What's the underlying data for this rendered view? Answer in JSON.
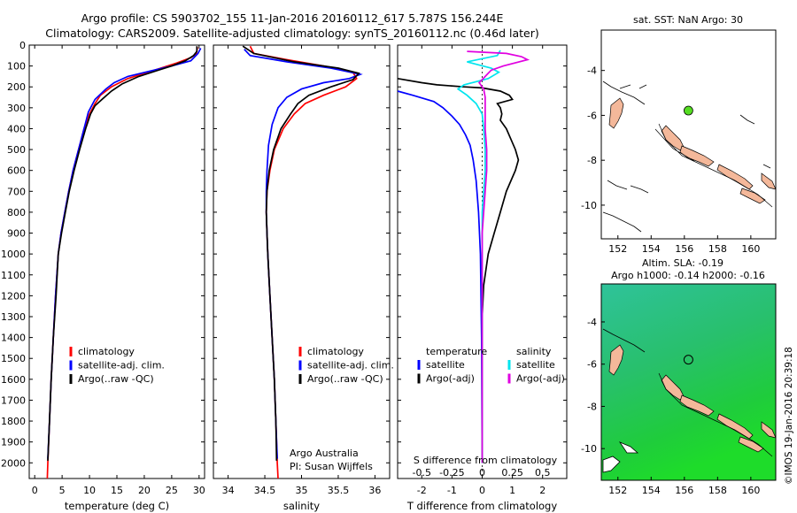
{
  "header": {
    "title_line1": "Argo profile: CS 5903702_155 11-Jan-2016 20160112_617 5.787S 156.244E",
    "title_line2": "Climatology: CARS2009. Satellite-adjusted climatology: synTS_20160112.nc (0.46d later)"
  },
  "colors": {
    "climatology": "#ff0000",
    "satellite": "#0000ff",
    "argo": "#000000",
    "sal_satellite": "#00e5ee",
    "sal_argo": "#e000e0",
    "land": "#f4b89a",
    "float_marker": "#55dd22"
  },
  "chart_data": [
    {
      "type": "line",
      "id": "temperature-profile",
      "xlabel": "temperature (deg C)",
      "ylabel": "",
      "xlim": [
        -1,
        31
      ],
      "ylim": [
        2075,
        0
      ],
      "x_ticks": [
        0,
        5,
        10,
        15,
        20,
        25,
        30
      ],
      "y_ticks": [
        0,
        100,
        200,
        300,
        400,
        500,
        600,
        700,
        800,
        900,
        1000,
        1100,
        1200,
        1300,
        1400,
        1500,
        1600,
        1700,
        1800,
        1900,
        2000
      ],
      "legend": [
        "climatology",
        "satellite-adj. clim.",
        "Argo(..raw -QC)"
      ],
      "series": [
        {
          "name": "climatology",
          "color": "#ff0000",
          "points": [
            [
              29.7,
              10
            ],
            [
              29.5,
              40
            ],
            [
              28.5,
              60
            ],
            [
              26,
              85
            ],
            [
              23,
              110
            ],
            [
              20,
              135
            ],
            [
              17,
              160
            ],
            [
              14,
              200
            ],
            [
              12,
              240
            ],
            [
              11,
              280
            ],
            [
              10,
              330
            ],
            [
              9,
              400
            ],
            [
              8,
              500
            ],
            [
              7,
              600
            ],
            [
              6.2,
              700
            ],
            [
              5.5,
              800
            ],
            [
              4.8,
              900
            ],
            [
              4.3,
              1000
            ],
            [
              3.8,
              1200
            ],
            [
              3.4,
              1400
            ],
            [
              3,
              1600
            ],
            [
              2.7,
              1800
            ],
            [
              2.4,
              2000
            ],
            [
              2.3,
              2075
            ]
          ]
        },
        {
          "name": "satellite-adj. clim.",
          "color": "#0000ff",
          "points": [
            [
              30.3,
              15
            ],
            [
              29.8,
              40
            ],
            [
              28.5,
              75
            ],
            [
              25,
              100
            ],
            [
              21,
              125
            ],
            [
              17,
              150
            ],
            [
              14.5,
              180
            ],
            [
              13,
              210
            ],
            [
              11,
              260
            ],
            [
              9.8,
              320
            ],
            [
              9,
              400
            ],
            [
              8,
              500
            ],
            [
              7,
              600
            ],
            [
              6.2,
              700
            ],
            [
              5.5,
              800
            ],
            [
              4.8,
              900
            ],
            [
              4.3,
              1000
            ],
            [
              3.8,
              1200
            ],
            [
              3.4,
              1400
            ],
            [
              3,
              1600
            ],
            [
              2.7,
              1800
            ],
            [
              2.4,
              1980
            ]
          ]
        },
        {
          "name": "Argo(..raw -QC)",
          "color": "#000000",
          "points": [
            [
              29.6,
              5
            ],
            [
              29.6,
              30
            ],
            [
              29,
              50
            ],
            [
              27.5,
              75
            ],
            [
              25,
              100
            ],
            [
              22,
              125
            ],
            [
              19,
              150
            ],
            [
              16,
              185
            ],
            [
              14,
              220
            ],
            [
              12.5,
              255
            ],
            [
              11,
              290
            ],
            [
              10.2,
              330
            ],
            [
              9.3,
              400
            ],
            [
              8.2,
              500
            ],
            [
              7.2,
              600
            ],
            [
              6.3,
              700
            ],
            [
              5.6,
              800
            ],
            [
              4.9,
              900
            ],
            [
              4.3,
              1000
            ],
            [
              3.9,
              1200
            ],
            [
              3.4,
              1400
            ],
            [
              3,
              1600
            ],
            [
              2.7,
              1800
            ],
            [
              2.4,
              1990
            ]
          ]
        }
      ]
    },
    {
      "type": "line",
      "id": "salinity-profile",
      "xlabel": "salinity",
      "ylabel": "",
      "xlim": [
        33.8,
        36.2
      ],
      "ylim": [
        2075,
        0
      ],
      "x_ticks": [
        34,
        34.5,
        35,
        35.5,
        36
      ],
      "legend": [
        "climatology",
        "satellite-adj. clim.",
        "Argo(..raw -QC)"
      ],
      "annotation": [
        "Argo Australia",
        "PI: Susan Wijffels"
      ],
      "series": [
        {
          "name": "climatology",
          "color": "#ff0000",
          "points": [
            [
              34.3,
              5
            ],
            [
              34.35,
              40
            ],
            [
              34.8,
              70
            ],
            [
              35.3,
              100
            ],
            [
              35.7,
              130
            ],
            [
              35.75,
              160
            ],
            [
              35.6,
              200
            ],
            [
              35.3,
              240
            ],
            [
              35.05,
              280
            ],
            [
              34.9,
              330
            ],
            [
              34.75,
              400
            ],
            [
              34.63,
              500
            ],
            [
              34.57,
              600
            ],
            [
              34.53,
              700
            ],
            [
              34.52,
              800
            ],
            [
              34.53,
              900
            ],
            [
              34.54,
              1000
            ],
            [
              34.57,
              1200
            ],
            [
              34.6,
              1400
            ],
            [
              34.63,
              1600
            ],
            [
              34.65,
              1800
            ],
            [
              34.67,
              2000
            ],
            [
              34.68,
              2075
            ]
          ]
        },
        {
          "name": "satellite-adj. clim.",
          "color": "#0000ff",
          "points": [
            [
              34.22,
              20
            ],
            [
              34.3,
              50
            ],
            [
              34.8,
              80
            ],
            [
              35.4,
              110
            ],
            [
              35.8,
              140
            ],
            [
              35.65,
              160
            ],
            [
              35.3,
              180
            ],
            [
              35,
              210
            ],
            [
              34.8,
              250
            ],
            [
              34.68,
              300
            ],
            [
              34.6,
              380
            ],
            [
              34.55,
              480
            ],
            [
              34.53,
              600
            ],
            [
              34.52,
              700
            ],
            [
              34.52,
              800
            ],
            [
              34.53,
              900
            ],
            [
              34.54,
              1000
            ],
            [
              34.57,
              1200
            ],
            [
              34.6,
              1400
            ],
            [
              34.63,
              1600
            ],
            [
              34.65,
              1800
            ],
            [
              34.67,
              1980
            ]
          ]
        },
        {
          "name": "Argo(..raw -QC)",
          "color": "#000000",
          "points": [
            [
              34.2,
              5
            ],
            [
              34.35,
              40
            ],
            [
              34.9,
              80
            ],
            [
              35.5,
              110
            ],
            [
              35.78,
              135
            ],
            [
              35.7,
              165
            ],
            [
              35.4,
              200
            ],
            [
              35.1,
              240
            ],
            [
              34.95,
              280
            ],
            [
              34.85,
              330
            ],
            [
              34.72,
              400
            ],
            [
              34.62,
              500
            ],
            [
              34.56,
              600
            ],
            [
              34.53,
              700
            ],
            [
              34.52,
              800
            ],
            [
              34.53,
              900
            ],
            [
              34.54,
              1000
            ],
            [
              34.57,
              1200
            ],
            [
              34.6,
              1400
            ],
            [
              34.63,
              1600
            ],
            [
              34.65,
              1800
            ],
            [
              34.66,
              1990
            ]
          ]
        }
      ]
    },
    {
      "type": "line",
      "id": "difference-profile",
      "xlabel": "T difference from climatology",
      "xlabel_top": "S difference from climatology",
      "xlim": [
        -2.8,
        2.8
      ],
      "ylim": [
        2075,
        0
      ],
      "x_ticks_bottom": [
        -2,
        -1,
        0,
        1,
        2
      ],
      "x_ticks_top_labels": [
        "-0.5",
        "-0.25",
        "0",
        "0.25",
        "0.5"
      ],
      "legend_left_header": "temperature",
      "legend_right_header": "salinity",
      "legend_left": [
        "satellite",
        "Argo(-adj)"
      ],
      "legend_right": [
        "satellite",
        "Argo(-adj)"
      ],
      "series": [
        {
          "name": "temperature satellite",
          "color": "#0000ff",
          "points": [
            [
              -2.8,
              220
            ],
            [
              -2.3,
              240
            ],
            [
              -1.6,
              270
            ],
            [
              -1.3,
              300
            ],
            [
              -1,
              340
            ],
            [
              -0.75,
              380
            ],
            [
              -0.55,
              430
            ],
            [
              -0.4,
              480
            ],
            [
              -0.3,
              550
            ],
            [
              -0.2,
              650
            ],
            [
              -0.12,
              800
            ],
            [
              -0.06,
              1000
            ],
            [
              -0.02,
              1400
            ],
            [
              0,
              2000
            ]
          ]
        },
        {
          "name": "temperature Argo(-adj)",
          "color": "#000000",
          "points": [
            [
              -2.8,
              160
            ],
            [
              -2,
              180
            ],
            [
              -1.5,
              190
            ],
            [
              -0.6,
              200
            ],
            [
              0,
              205
            ],
            [
              0.6,
              220
            ],
            [
              0.9,
              240
            ],
            [
              1,
              260
            ],
            [
              0.5,
              280
            ],
            [
              0.6,
              300
            ],
            [
              0.65,
              330
            ],
            [
              0.6,
              360
            ],
            [
              0.8,
              400
            ],
            [
              0.95,
              450
            ],
            [
              1.1,
              500
            ],
            [
              1.2,
              550
            ],
            [
              1.1,
              600
            ],
            [
              0.95,
              650
            ],
            [
              0.8,
              700
            ],
            [
              0.6,
              800
            ],
            [
              0.4,
              900
            ],
            [
              0.2,
              1000
            ],
            [
              0.05,
              1150
            ],
            [
              0,
              1300
            ],
            [
              0,
              2000
            ]
          ]
        },
        {
          "name": "salinity satellite",
          "color": "#00e5ee",
          "points": [
            [
              0.6,
              25
            ],
            [
              0.5,
              50
            ],
            [
              -0.5,
              80
            ],
            [
              0.3,
              110
            ],
            [
              0.55,
              130
            ],
            [
              0.2,
              160
            ],
            [
              -0.6,
              190
            ],
            [
              -0.8,
              210
            ],
            [
              -0.5,
              240
            ],
            [
              -0.2,
              280
            ],
            [
              0,
              330
            ],
            [
              0.05,
              400
            ],
            [
              0.1,
              500
            ],
            [
              0.1,
              600
            ],
            [
              0.05,
              700
            ],
            [
              0,
              800
            ],
            [
              0,
              2000
            ]
          ]
        },
        {
          "name": "salinity Argo(-adj)",
          "color": "#e000e0",
          "points": [
            [
              -0.5,
              30
            ],
            [
              0.8,
              40
            ],
            [
              1.3,
              55
            ],
            [
              1.5,
              70
            ],
            [
              0.7,
              100
            ],
            [
              0.3,
              120
            ],
            [
              0.1,
              150
            ],
            [
              -0.1,
              180
            ],
            [
              0.05,
              210
            ],
            [
              0.1,
              250
            ],
            [
              0.1,
              300
            ],
            [
              0.1,
              400
            ],
            [
              0.15,
              500
            ],
            [
              0.15,
              600
            ],
            [
              0.1,
              700
            ],
            [
              0.05,
              800
            ],
            [
              0,
              900
            ],
            [
              0,
              2000
            ]
          ]
        }
      ]
    },
    {
      "type": "scatter",
      "id": "sst-map",
      "title": "sat. SST: NaN Argo: 30",
      "xlim": [
        151,
        161.5
      ],
      "ylim": [
        -11.5,
        -2.2
      ],
      "x_ticks": [
        152,
        154,
        156,
        158,
        160
      ],
      "y_ticks": [
        -4,
        -6,
        -8,
        -10
      ],
      "points": [
        {
          "lon": 156.244,
          "lat": -5.787
        }
      ]
    },
    {
      "type": "heatmap",
      "id": "sla-map",
      "title_line1": "Altim. SLA: -0.19",
      "title_line2": "Argo h1000: -0.14 h2000: -0.16",
      "xlim": [
        151,
        161.5
      ],
      "ylim": [
        -11.5,
        -2.2
      ],
      "x_ticks": [
        152,
        154,
        156,
        158,
        160
      ],
      "y_ticks": [
        -4,
        -6,
        -8,
        -10
      ],
      "points": [
        {
          "lon": 156.244,
          "lat": -5.787
        }
      ]
    }
  ],
  "footer": {
    "credit": "©IMOS 19-Jan-2016 20:39:18"
  }
}
